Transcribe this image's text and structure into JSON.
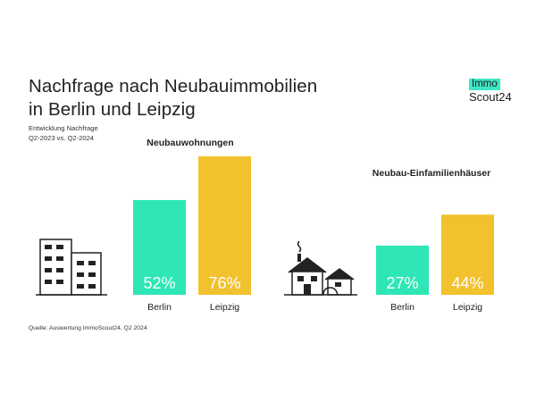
{
  "title_line1": "Nachfrage nach Neubauimmobilien",
  "title_line2": "in Berlin und Leipzig",
  "subtitle_line1": "Entwicklung Nachfrage",
  "subtitle_line2": "Q2-2023 vs. Q2-2024",
  "logo": {
    "top": "Immo",
    "bottom": "Scout24"
  },
  "source": "Quelle: Auswertung ImmoScout24, Q2 2024",
  "colors": {
    "berlin": "#2ee6b6",
    "leipzig": "#f2c12e",
    "logo_accent": "#3ee6c4"
  },
  "icons": [
    "apartment-building-icon",
    "houses-icon"
  ],
  "chart_data": [
    {
      "type": "bar",
      "title": "Neubauwohnungen",
      "categories": [
        "Berlin",
        "Leipzig"
      ],
      "values": [
        52,
        76
      ],
      "value_labels": [
        "52%",
        "76%"
      ],
      "unit": "%",
      "ylim": [
        0,
        100
      ],
      "grid": false
    },
    {
      "type": "bar",
      "title": "Neubau-Einfamilienhäuser",
      "categories": [
        "Berlin",
        "Leipzig"
      ],
      "values": [
        27,
        44
      ],
      "value_labels": [
        "27%",
        "44%"
      ],
      "unit": "%",
      "ylim": [
        0,
        100
      ],
      "grid": false
    }
  ]
}
